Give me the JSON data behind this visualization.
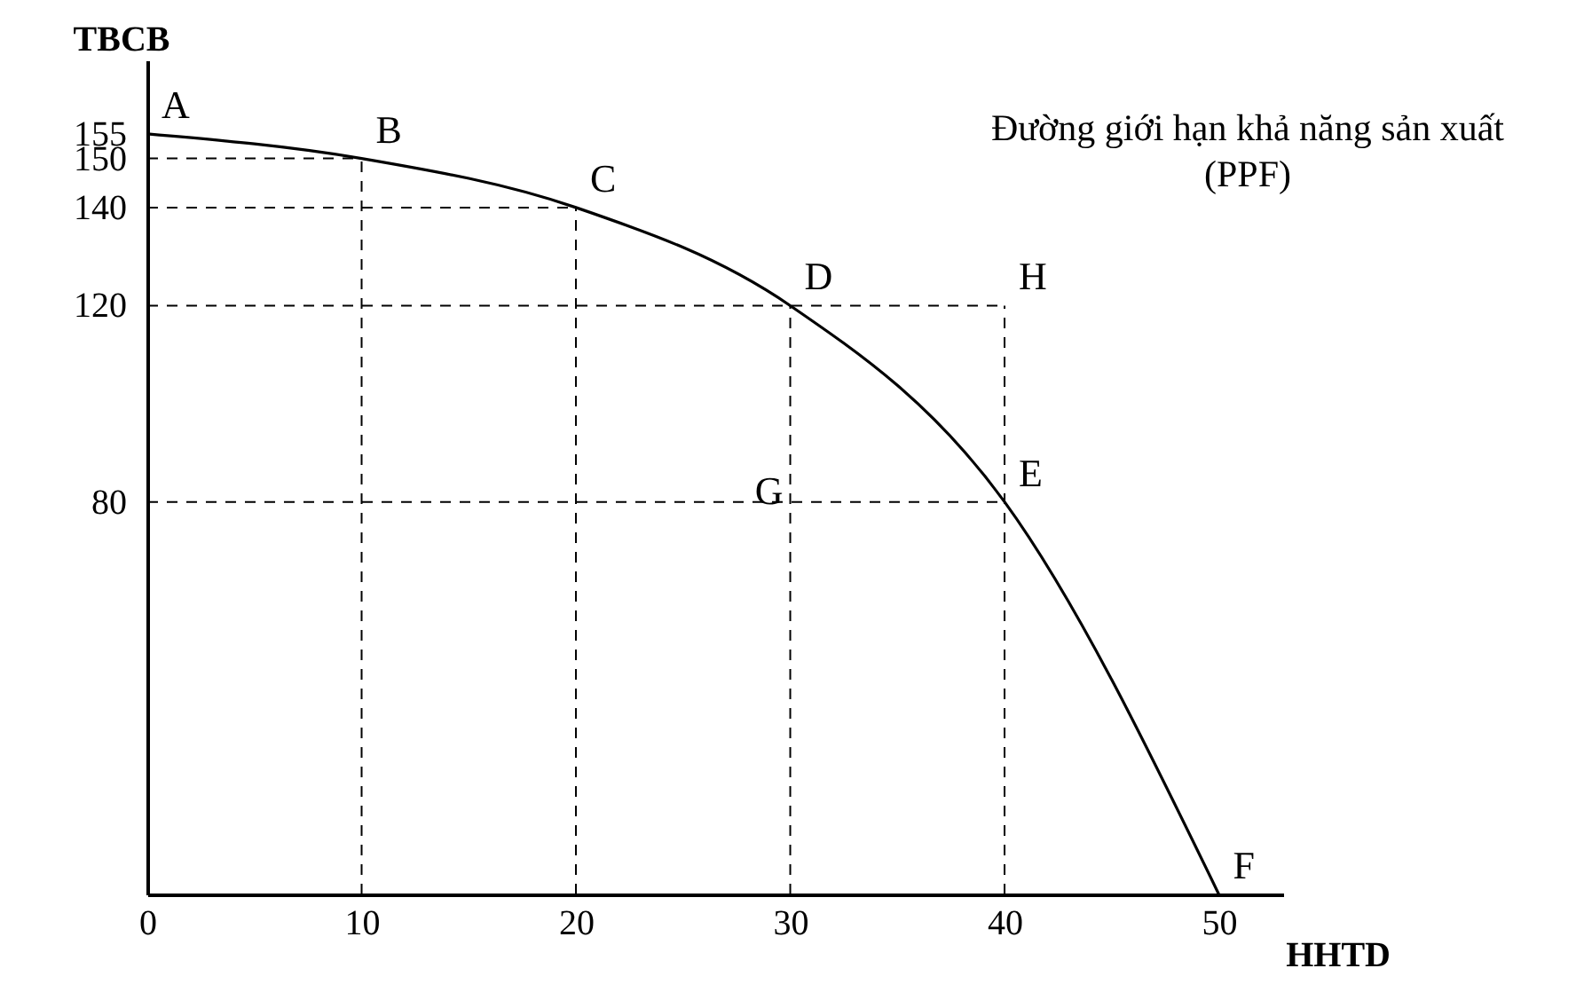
{
  "chart_data": {
    "type": "line",
    "title": "Đường giới hạn khả năng sản xuất (PPF)",
    "xlabel": "HHTD",
    "ylabel": "TBCB",
    "xlim": [
      0,
      53
    ],
    "ylim": [
      0,
      170
    ],
    "xticks": [
      0,
      10,
      20,
      30,
      40,
      50
    ],
    "yticks": [
      80,
      120,
      140,
      150,
      155
    ],
    "grid": false,
    "marker": "none",
    "series": [
      {
        "color": "#000000",
        "x": [
          0,
          10,
          20,
          30,
          40,
          50
        ],
        "values": [
          155,
          150,
          140,
          120,
          80,
          0
        ]
      },
      {
        "color": "#000000",
        "line_style": "dashed",
        "x": [
          0,
          10
        ],
        "values": [
          150,
          150
        ]
      },
      {
        "color": "#000000",
        "line_style": "dashed",
        "x": [
          10,
          10
        ],
        "values": [
          0,
          150
        ]
      },
      {
        "color": "#000000",
        "line_style": "dashed",
        "x": [
          0,
          20
        ],
        "values": [
          140,
          140
        ]
      },
      {
        "color": "#000000",
        "line_style": "dashed",
        "x": [
          20,
          20
        ],
        "values": [
          0,
          140
        ]
      },
      {
        "color": "#000000",
        "line_style": "dashed",
        "x": [
          0,
          40
        ],
        "values": [
          120,
          120
        ]
      },
      {
        "color": "#000000",
        "line_style": "dashed",
        "x": [
          30,
          30
        ],
        "values": [
          0,
          120
        ]
      },
      {
        "color": "#000000",
        "line_style": "dashed",
        "x": [
          40,
          40
        ],
        "values": [
          0,
          120
        ]
      },
      {
        "color": "#000000",
        "line_style": "dashed",
        "x": [
          0,
          40
        ],
        "values": [
          80,
          80
        ]
      }
    ],
    "annotations": [
      {
        "text": "A",
        "x": 0,
        "y": 155
      },
      {
        "text": "B",
        "x": 10,
        "y": 150
      },
      {
        "text": "C",
        "x": 20,
        "y": 140
      },
      {
        "text": "D",
        "x": 30,
        "y": 120
      },
      {
        "text": "E",
        "x": 40,
        "y": 80
      },
      {
        "text": "F",
        "x": 50,
        "y": 0
      },
      {
        "text": "G",
        "x": 30,
        "y": 80
      },
      {
        "text": "H",
        "x": 40,
        "y": 120
      }
    ]
  }
}
